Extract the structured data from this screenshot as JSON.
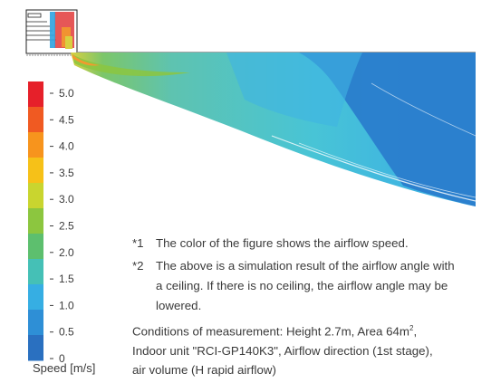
{
  "legend": {
    "title": "Speed [m/s]",
    "ticks": [
      "5.0",
      "4.5",
      "4.0",
      "3.5",
      "3.0",
      "2.5",
      "2.0",
      "1.5",
      "1.0",
      "0.5",
      "0"
    ],
    "colors": [
      "#e6202a",
      "#f05a22",
      "#f7941d",
      "#f6c118",
      "#c9d52f",
      "#8cc63f",
      "#5dbf6e",
      "#45c0b6",
      "#36aee3",
      "#2e8fd6",
      "#2a70c0"
    ]
  },
  "notes": [
    {
      "num": "*1",
      "lines": [
        "The color of the figure shows the airflow speed."
      ]
    },
    {
      "num": "*2",
      "lines": [
        "The above is a simulation result of the airflow angle with",
        "a ceiling. If there is no ceiling, the airflow angle may be",
        "lowered."
      ]
    }
  ],
  "conditions": {
    "line1_prefix": "Conditions of measurement: Height 2.7m, Area 64m",
    "line1_sup": "2",
    "line1_suffix": ",",
    "line2": "Indoor unit \"RCI-GP140K3\", Airflow direction (1st stage),",
    "line3": "air volume (H rapid airflow)"
  }
}
